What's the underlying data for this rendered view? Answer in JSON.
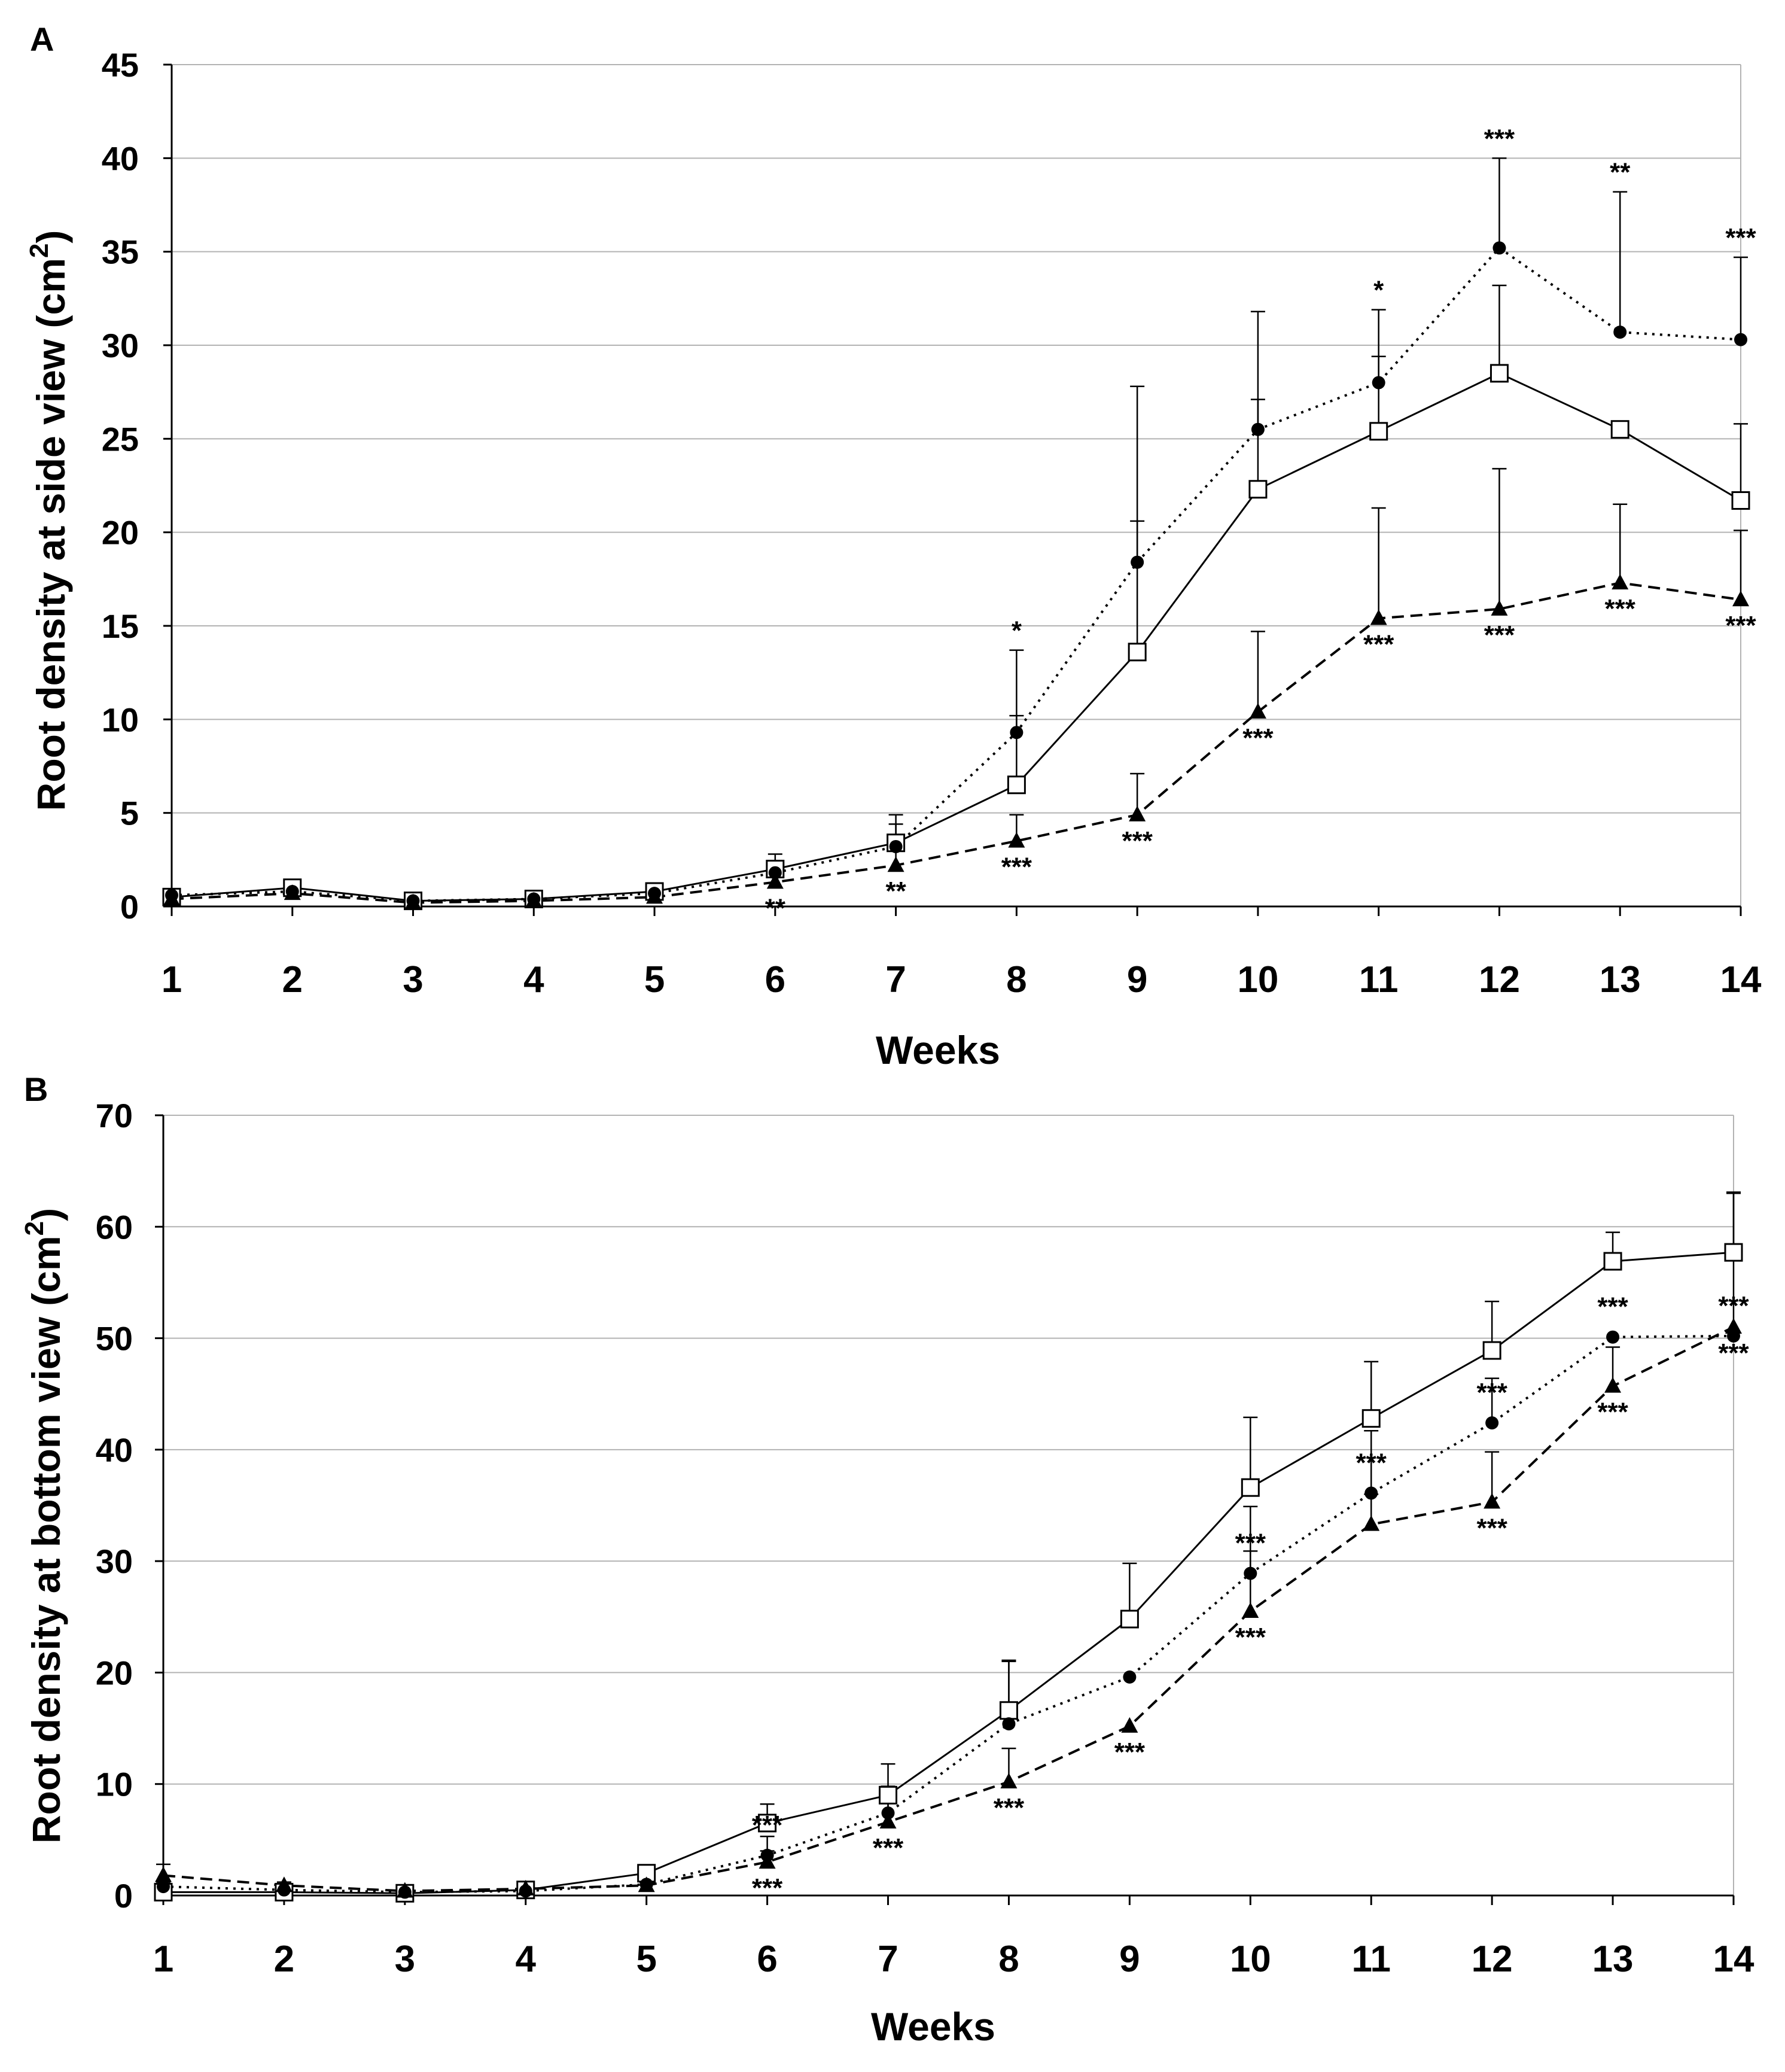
{
  "chart_data": [
    {
      "type": "line",
      "panel": "A",
      "xlabel": "Weeks",
      "ylabel_main": "Root density at side view (cm",
      "ylabel_sup": "2",
      "ylabel_end": ")",
      "ylim": [
        0,
        45
      ],
      "yticks": [
        0,
        5,
        10,
        15,
        20,
        25,
        30,
        35,
        40,
        45
      ],
      "grid": true,
      "x": [
        1,
        2,
        3,
        4,
        5,
        6,
        7,
        8,
        9,
        10,
        11,
        12,
        13,
        14
      ],
      "x_tick_labels": [
        "1",
        "2",
        "3",
        "4",
        "5",
        "6",
        "7",
        "8",
        "9",
        "10",
        "11",
        "12",
        "13",
        "14"
      ],
      "series": [
        {
          "name": "open-square-solid",
          "marker": "square",
          "line": "solid",
          "values": [
            0.5,
            1.0,
            0.3,
            0.4,
            0.8,
            2.0,
            3.4,
            6.5,
            13.6,
            22.3,
            25.4,
            28.5,
            25.5,
            21.7
          ],
          "error_up": [
            0.3,
            0.4,
            0.2,
            0.2,
            0.3,
            0.8,
            1.5,
            3.7,
            7.0,
            4.8,
            4.0,
            4.7,
            0,
            4.1
          ],
          "significance": [
            "",
            "",
            "",
            "",
            "",
            "",
            "",
            "",
            "",
            "",
            "",
            "",
            "",
            ""
          ]
        },
        {
          "name": "filled-circle-dotted",
          "marker": "circle",
          "line": "dotted",
          "values": [
            0.6,
            0.8,
            0.3,
            0.4,
            0.7,
            1.8,
            3.2,
            9.3,
            18.4,
            25.5,
            28.0,
            35.2,
            30.7,
            30.3
          ],
          "error_up": [
            0.2,
            0.3,
            0.2,
            0.2,
            0.3,
            0.6,
            1.2,
            4.4,
            9.4,
            6.3,
            3.9,
            4.8,
            7.5,
            4.4
          ],
          "significance": [
            "",
            "",
            "",
            "",
            "",
            "",
            "",
            "*",
            "",
            "",
            "*",
            "***",
            "**",
            "***"
          ]
        },
        {
          "name": "filled-triangle-dashed",
          "marker": "triangle",
          "line": "dashed",
          "values": [
            0.4,
            0.7,
            0.2,
            0.3,
            0.5,
            1.3,
            2.2,
            3.5,
            4.9,
            10.4,
            15.4,
            15.9,
            17.3,
            16.4
          ],
          "error_up": [
            0.2,
            0.3,
            0.1,
            0.2,
            0.2,
            0.4,
            0.8,
            1.4,
            2.2,
            4.3,
            5.9,
            7.5,
            4.2,
            3.7
          ],
          "significance": [
            "",
            "",
            "",
            "",
            "",
            "**",
            "**",
            "***",
            "***",
            "***",
            "***",
            "***",
            "***",
            "***"
          ]
        }
      ]
    },
    {
      "type": "line",
      "panel": "B",
      "xlabel": "Weeks",
      "ylabel_main": "Root density at bottom view (cm",
      "ylabel_sup": "2",
      "ylabel_end": ")",
      "ylim": [
        0,
        70
      ],
      "yticks": [
        0,
        10,
        20,
        30,
        40,
        50,
        60,
        70
      ],
      "grid": true,
      "x": [
        1,
        2,
        3,
        4,
        5,
        6,
        7,
        8,
        9,
        10,
        11,
        12,
        13,
        14
      ],
      "x_tick_labels": [
        "1",
        "2",
        "3",
        "4",
        "5",
        "6",
        "7",
        "8",
        "9",
        "10",
        "11",
        "12",
        "13",
        "14"
      ],
      "series": [
        {
          "name": "open-square-solid",
          "marker": "square",
          "line": "solid",
          "values": [
            0.3,
            0.3,
            0.2,
            0.5,
            2.0,
            6.5,
            9.0,
            16.6,
            24.8,
            36.6,
            42.8,
            48.9,
            56.9,
            57.7
          ],
          "error_up": [
            0.3,
            0.3,
            0.2,
            0.3,
            0.6,
            1.7,
            2.8,
            4.5,
            5.0,
            6.3,
            5.1,
            4.4,
            2.6,
            5.4
          ],
          "significance": [
            "",
            "",
            "",
            "",
            "",
            "",
            "",
            "",
            "",
            "",
            "",
            "",
            "",
            ""
          ]
        },
        {
          "name": "filled-circle-dotted",
          "marker": "circle",
          "line": "dotted",
          "values": [
            0.8,
            0.5,
            0.3,
            0.4,
            1.0,
            3.6,
            7.4,
            15.4,
            19.6,
            28.9,
            36.1,
            42.4,
            50.1,
            50.2
          ],
          "error_up": [
            0.4,
            0.3,
            0.2,
            0.3,
            0.4,
            1.7,
            2.4,
            5.6,
            0,
            6.0,
            5.6,
            4.0,
            0,
            0
          ],
          "significance": [
            "",
            "",
            "",
            "",
            "",
            "***",
            "",
            "",
            "",
            "***",
            "***",
            "***",
            "***",
            "***"
          ]
        },
        {
          "name": "filled-triangle-dashed",
          "marker": "triangle",
          "line": "dashed",
          "values": [
            1.8,
            0.9,
            0.4,
            0.6,
            0.9,
            3.0,
            6.6,
            10.2,
            15.2,
            25.5,
            33.3,
            35.3,
            45.7,
            51.0
          ],
          "error_up": [
            1.0,
            0.3,
            0.2,
            0.2,
            0.3,
            1.0,
            1.8,
            3.0,
            0,
            5.4,
            2.7,
            4.5,
            3.5,
            12.0
          ],
          "significance": [
            "",
            "",
            "",
            "",
            "",
            "***",
            "***",
            "***",
            "***",
            "***",
            "",
            "***",
            "***",
            "***"
          ]
        }
      ]
    }
  ]
}
